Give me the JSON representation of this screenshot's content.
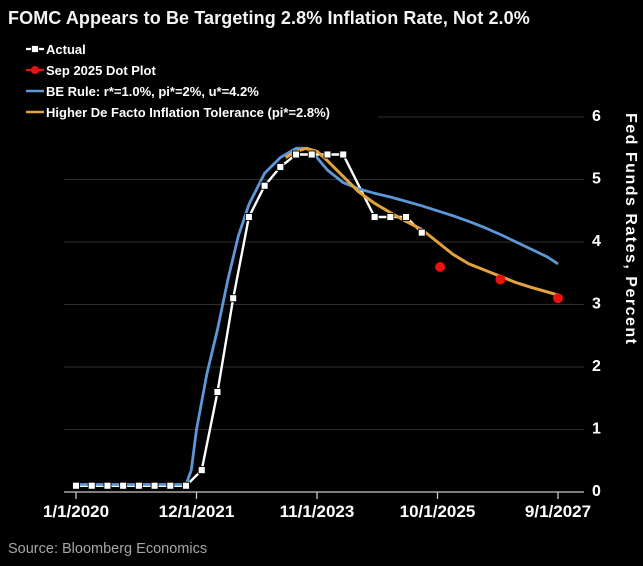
{
  "title": "FOMC Appears to Be Targeting 2.8% Inflation Rate, Not 2.0%",
  "source": "Source: Bloomberg Economics",
  "colors": {
    "background": "#000000",
    "text": "#ffffff",
    "muted_text": "#a6a6a6",
    "grid": "#2e2e2e",
    "axis": "#c9c9c9"
  },
  "chart_data": {
    "type": "line",
    "title": "FOMC Appears to Be Targeting 2.8% Inflation Rate, Not 2.0%",
    "xlabel": "",
    "ylabel": "Fed Funds Rates, Percent",
    "ylim": [
      0,
      6
    ],
    "y_ticks": [
      0,
      1,
      2,
      3,
      4,
      5,
      6
    ],
    "grid": "horizontal",
    "legend_position": "top-left",
    "background": "black",
    "x_unit": "months since 1/1/2020",
    "x_range": [
      0,
      92
    ],
    "x_ticks": [
      {
        "t": 0,
        "label": "1/1/2020"
      },
      {
        "t": 23,
        "label": "12/1/2021"
      },
      {
        "t": 46,
        "label": "11/1/2023"
      },
      {
        "t": 69,
        "label": "10/1/2025"
      },
      {
        "t": 92,
        "label": "9/1/2027"
      }
    ],
    "series": [
      {
        "name": "Actual",
        "type": "line",
        "marker": "square",
        "color": "#ffffff",
        "points": [
          [
            0,
            0.1
          ],
          [
            3,
            0.1
          ],
          [
            6,
            0.1
          ],
          [
            9,
            0.1
          ],
          [
            12,
            0.1
          ],
          [
            15,
            0.1
          ],
          [
            18,
            0.1
          ],
          [
            21,
            0.1
          ],
          [
            24,
            0.35
          ],
          [
            27,
            1.6
          ],
          [
            30,
            3.1
          ],
          [
            33,
            4.4
          ],
          [
            36,
            4.9
          ],
          [
            39,
            5.2
          ],
          [
            42,
            5.4
          ],
          [
            45,
            5.4
          ],
          [
            48,
            5.4
          ],
          [
            51,
            5.4
          ],
          [
            57,
            4.4
          ],
          [
            60,
            4.4
          ],
          [
            63,
            4.4
          ],
          [
            66,
            4.15
          ]
        ]
      },
      {
        "name": "Sep 2025 Dot Plot",
        "type": "scatter",
        "marker": "circle",
        "color": "#e8120f",
        "points": [
          [
            69.5,
            3.6
          ],
          [
            81,
            3.4
          ],
          [
            92,
            3.1
          ]
        ]
      },
      {
        "name": "BE Rule: r*=1.0%, pi*=2%, u*=4.2%",
        "type": "line",
        "marker": "none",
        "color": "#5e97d8",
        "points": [
          [
            0,
            0.12
          ],
          [
            6,
            0.12
          ],
          [
            12,
            0.12
          ],
          [
            18,
            0.12
          ],
          [
            21,
            0.12
          ],
          [
            22,
            0.35
          ],
          [
            23,
            1.0
          ],
          [
            25,
            1.9
          ],
          [
            27,
            2.6
          ],
          [
            29,
            3.4
          ],
          [
            31,
            4.1
          ],
          [
            33,
            4.6
          ],
          [
            36,
            5.1
          ],
          [
            39,
            5.35
          ],
          [
            42,
            5.5
          ],
          [
            44,
            5.5
          ],
          [
            46,
            5.35
          ],
          [
            48,
            5.15
          ],
          [
            51,
            4.95
          ],
          [
            54,
            4.85
          ],
          [
            57,
            4.78
          ],
          [
            60,
            4.72
          ],
          [
            63,
            4.65
          ],
          [
            66,
            4.58
          ],
          [
            69,
            4.5
          ],
          [
            72,
            4.42
          ],
          [
            75,
            4.33
          ],
          [
            78,
            4.23
          ],
          [
            81,
            4.12
          ],
          [
            84,
            4.0
          ],
          [
            87,
            3.88
          ],
          [
            90,
            3.76
          ],
          [
            92,
            3.65
          ]
        ]
      },
      {
        "name": "Higher De Facto Inflation Tolerance (pi*=2.8%)",
        "type": "line",
        "marker": "none",
        "color": "#e2a33d",
        "points": [
          [
            40,
            5.35
          ],
          [
            42,
            5.45
          ],
          [
            44,
            5.5
          ],
          [
            46,
            5.45
          ],
          [
            48,
            5.3
          ],
          [
            51,
            5.05
          ],
          [
            54,
            4.8
          ],
          [
            57,
            4.62
          ],
          [
            60,
            4.47
          ],
          [
            63,
            4.33
          ],
          [
            66,
            4.2
          ],
          [
            69,
            4.0
          ],
          [
            72,
            3.8
          ],
          [
            75,
            3.65
          ],
          [
            78,
            3.55
          ],
          [
            81,
            3.45
          ],
          [
            84,
            3.35
          ],
          [
            87,
            3.27
          ],
          [
            90,
            3.2
          ],
          [
            92,
            3.15
          ]
        ]
      }
    ]
  }
}
